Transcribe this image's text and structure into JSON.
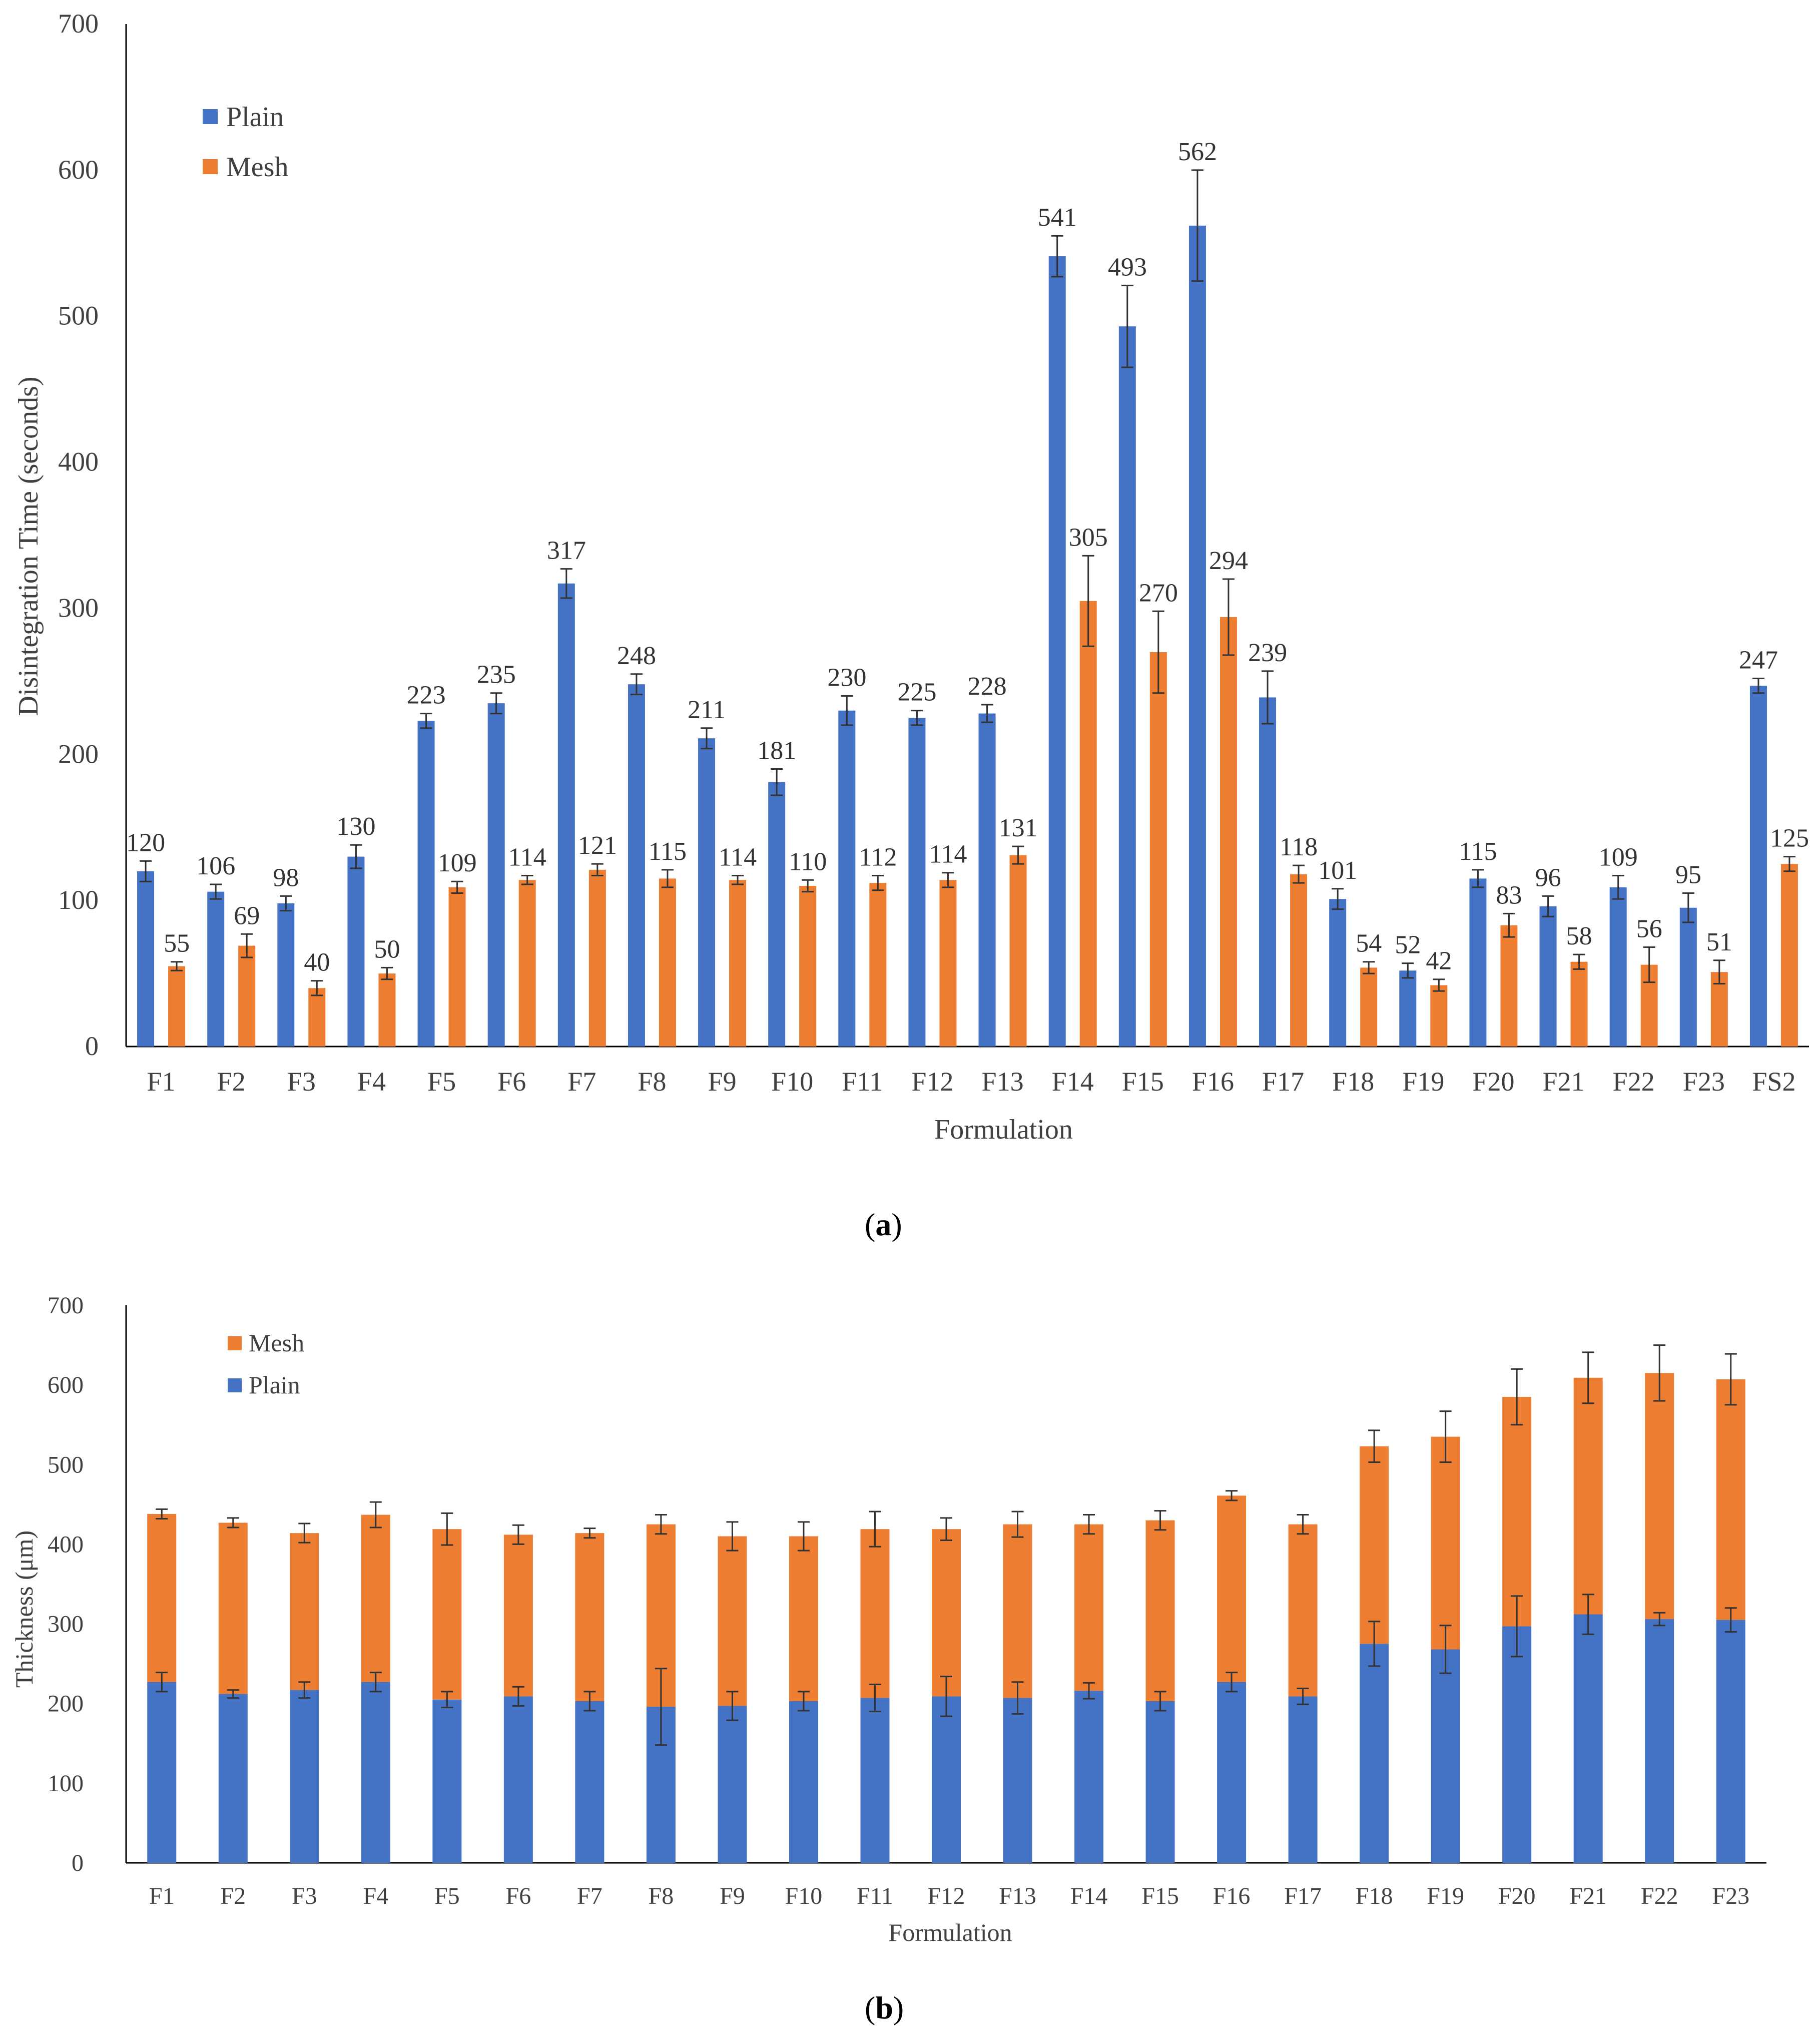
{
  "colors": {
    "plain": "#4472C4",
    "mesh": "#ED7D31",
    "axis": "#7F7F7F",
    "text": "#404040",
    "error_bar": "#333333"
  },
  "captions": {
    "a": "a",
    "b": "b"
  },
  "chart_data": [
    {
      "id": "a",
      "type": "bar",
      "title": "",
      "xlabel": "Formulation",
      "ylabel": "Disintegration Time (seconds)",
      "ylim": [
        0,
        700
      ],
      "yticks": [
        0,
        100,
        200,
        300,
        400,
        500,
        600,
        700
      ],
      "grid": false,
      "legend": "top-left",
      "categories": [
        "F1",
        "F2",
        "F3",
        "F4",
        "F5",
        "F6",
        "F7",
        "F8",
        "F9",
        "F10",
        "F11",
        "F12",
        "F13",
        "F14",
        "F15",
        "F16",
        "F17",
        "F18",
        "F19",
        "F20",
        "F21",
        "F22",
        "F23",
        "FS2"
      ],
      "series": [
        {
          "name": "Plain",
          "color": "#4472C4",
          "values": [
            120,
            106,
            98,
            130,
            223,
            235,
            317,
            248,
            211,
            181,
            230,
            225,
            228,
            541,
            493,
            562,
            239,
            101,
            52,
            115,
            96,
            109,
            95,
            247
          ],
          "errors": [
            7,
            5,
            5,
            8,
            5,
            7,
            10,
            7,
            7,
            9,
            10,
            5,
            6,
            14,
            28,
            38,
            18,
            7,
            5,
            6,
            7,
            8,
            10,
            5
          ]
        },
        {
          "name": "Mesh",
          "color": "#ED7D31",
          "values": [
            55,
            69,
            40,
            50,
            109,
            114,
            121,
            115,
            114,
            110,
            112,
            114,
            131,
            305,
            270,
            294,
            118,
            54,
            42,
            83,
            58,
            56,
            51,
            125
          ],
          "errors": [
            3,
            8,
            5,
            4,
            4,
            3,
            4,
            6,
            3,
            4,
            5,
            5,
            6,
            31,
            28,
            26,
            6,
            4,
            4,
            8,
            5,
            12,
            8,
            5
          ]
        }
      ]
    },
    {
      "id": "b",
      "type": "bar",
      "stacked": true,
      "title": "",
      "xlabel": "Formulation",
      "ylabel": "Thickness (μm)",
      "ylim": [
        0,
        700
      ],
      "yticks": [
        0,
        100,
        200,
        300,
        400,
        500,
        600,
        700
      ],
      "grid": false,
      "legend": "top-left",
      "categories": [
        "F1",
        "F2",
        "F3",
        "F4",
        "F5",
        "F6",
        "F7",
        "F8",
        "F9",
        "F10",
        "F11",
        "F12",
        "F13",
        "F14",
        "F15",
        "F16",
        "F17",
        "F18",
        "F19",
        "F20",
        "F21",
        "F22",
        "F23"
      ],
      "series": [
        {
          "name": "Plain",
          "color": "#4472C4",
          "values": [
            227,
            212,
            217,
            227,
            205,
            209,
            203,
            196,
            197,
            203,
            207,
            209,
            207,
            216,
            203,
            227,
            209,
            275,
            268,
            297,
            312,
            306,
            305
          ],
          "errors": [
            12,
            5,
            10,
            12,
            10,
            12,
            12,
            48,
            18,
            12,
            17,
            25,
            20,
            10,
            12,
            12,
            10,
            28,
            30,
            38,
            25,
            8,
            15
          ]
        },
        {
          "name": "Mesh",
          "color": "#ED7D31",
          "values": [
            211,
            215,
            197,
            210,
            214,
            203,
            211,
            229,
            213,
            207,
            212,
            210,
            218,
            209,
            227,
            234,
            216,
            248,
            267,
            288,
            297,
            309,
            302
          ],
          "errors": [
            6,
            6,
            12,
            16,
            20,
            12,
            6,
            12,
            18,
            18,
            22,
            14,
            16,
            12,
            12,
            6,
            12,
            20,
            32,
            35,
            32,
            35,
            32
          ]
        }
      ]
    }
  ]
}
